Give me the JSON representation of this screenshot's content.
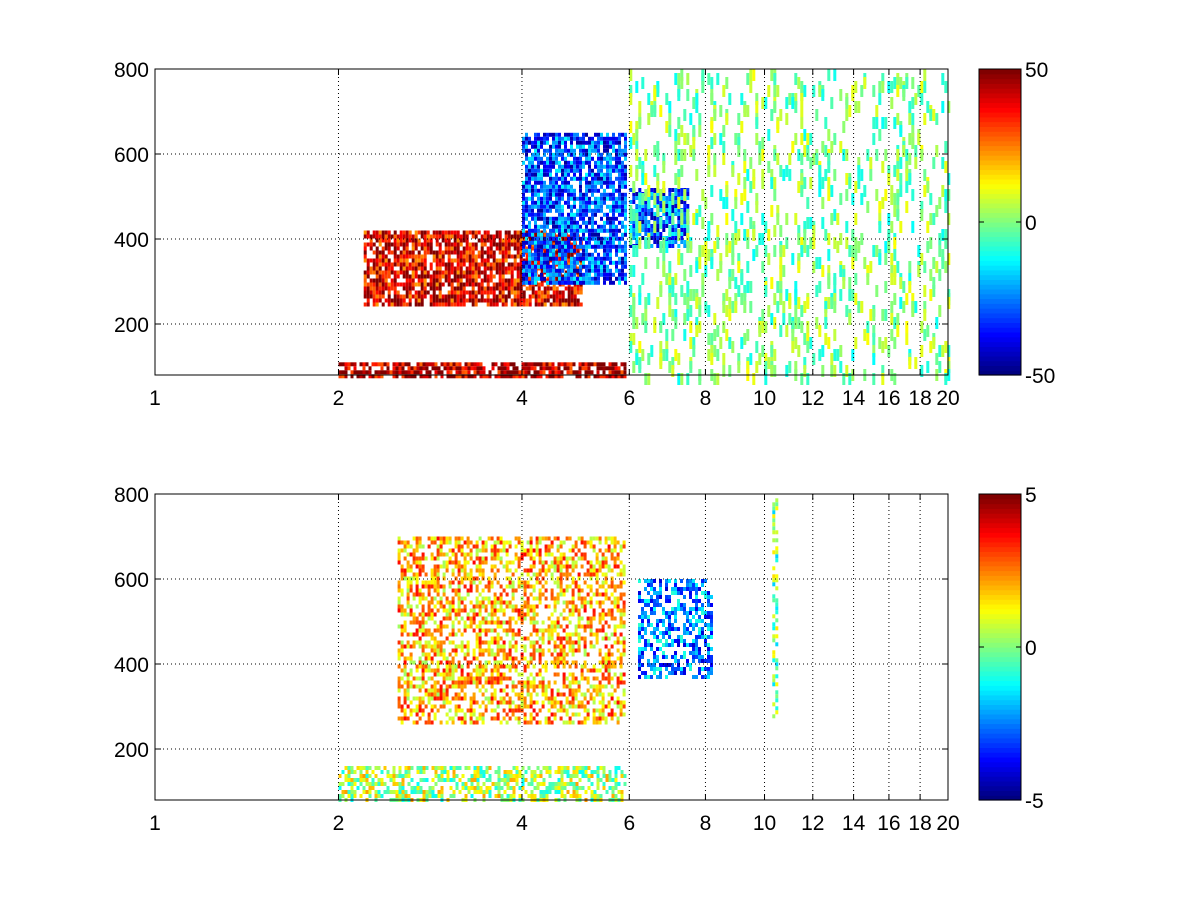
{
  "chart_data": [
    {
      "type": "heatmap",
      "title": "",
      "xlabel": "",
      "ylabel": "",
      "xlim": [
        1,
        20
      ],
      "ylim": [
        80,
        800
      ],
      "x_scale": "log",
      "x_ticks": [
        1,
        2,
        4,
        6,
        8,
        10,
        12,
        14,
        16,
        18,
        20
      ],
      "x_tick_labels": [
        "1",
        "2",
        "4",
        "6",
        "8",
        "10",
        "12",
        "14",
        "16",
        "18",
        "20"
      ],
      "y_ticks": [
        200,
        400,
        600,
        800
      ],
      "y_tick_labels": [
        "200",
        "400",
        "600",
        "800"
      ],
      "grid": true,
      "colormap": "jet",
      "colorbar": {
        "min": -50,
        "max": 50,
        "ticks": [
          -50,
          0,
          50
        ],
        "tick_labels": [
          "-50",
          "0",
          "50"
        ]
      },
      "features": [
        {
          "x_range": [
            2.2,
            5.0
          ],
          "y_range": [
            250,
            420
          ],
          "approx_value": 40
        },
        {
          "x_range": [
            4.0,
            5.9
          ],
          "y_range": [
            300,
            650
          ],
          "approx_value": -30
        },
        {
          "x_range": [
            6.0,
            7.5
          ],
          "y_range": [
            380,
            520
          ],
          "approx_value": -30
        },
        {
          "x_range": [
            2.0,
            5.9
          ],
          "y_range": [
            80,
            110
          ],
          "approx_value": 45
        },
        {
          "x_range": [
            6.0,
            20.0
          ],
          "y_range": [
            80,
            800
          ],
          "approx_value": 0
        }
      ]
    },
    {
      "type": "heatmap",
      "title": "",
      "xlabel": "",
      "ylabel": "",
      "xlim": [
        1,
        20
      ],
      "ylim": [
        80,
        800
      ],
      "x_scale": "log",
      "x_ticks": [
        1,
        2,
        4,
        6,
        8,
        10,
        12,
        14,
        16,
        18,
        20
      ],
      "x_tick_labels": [
        "1",
        "2",
        "4",
        "6",
        "8",
        "10",
        "12",
        "14",
        "16",
        "18",
        "20"
      ],
      "y_ticks": [
        200,
        400,
        600,
        800
      ],
      "y_tick_labels": [
        "200",
        "400",
        "600",
        "800"
      ],
      "grid": true,
      "colormap": "jet",
      "colorbar": {
        "min": -5,
        "max": 5,
        "ticks": [
          -5,
          0,
          5
        ],
        "tick_labels": [
          "-5",
          "0",
          "5"
        ]
      },
      "features": [
        {
          "x_range": [
            2.5,
            5.9
          ],
          "y_range": [
            260,
            700
          ],
          "approx_value": 2
        },
        {
          "x_range": [
            6.2,
            8.2
          ],
          "y_range": [
            370,
            600
          ],
          "approx_value": -2.5
        },
        {
          "x_range": [
            2.0,
            5.9
          ],
          "y_range": [
            80,
            160
          ],
          "approx_value": 0.5
        },
        {
          "x_range": [
            10.3,
            10.5
          ],
          "y_range": [
            280,
            790
          ],
          "approx_value": 0
        }
      ]
    }
  ]
}
